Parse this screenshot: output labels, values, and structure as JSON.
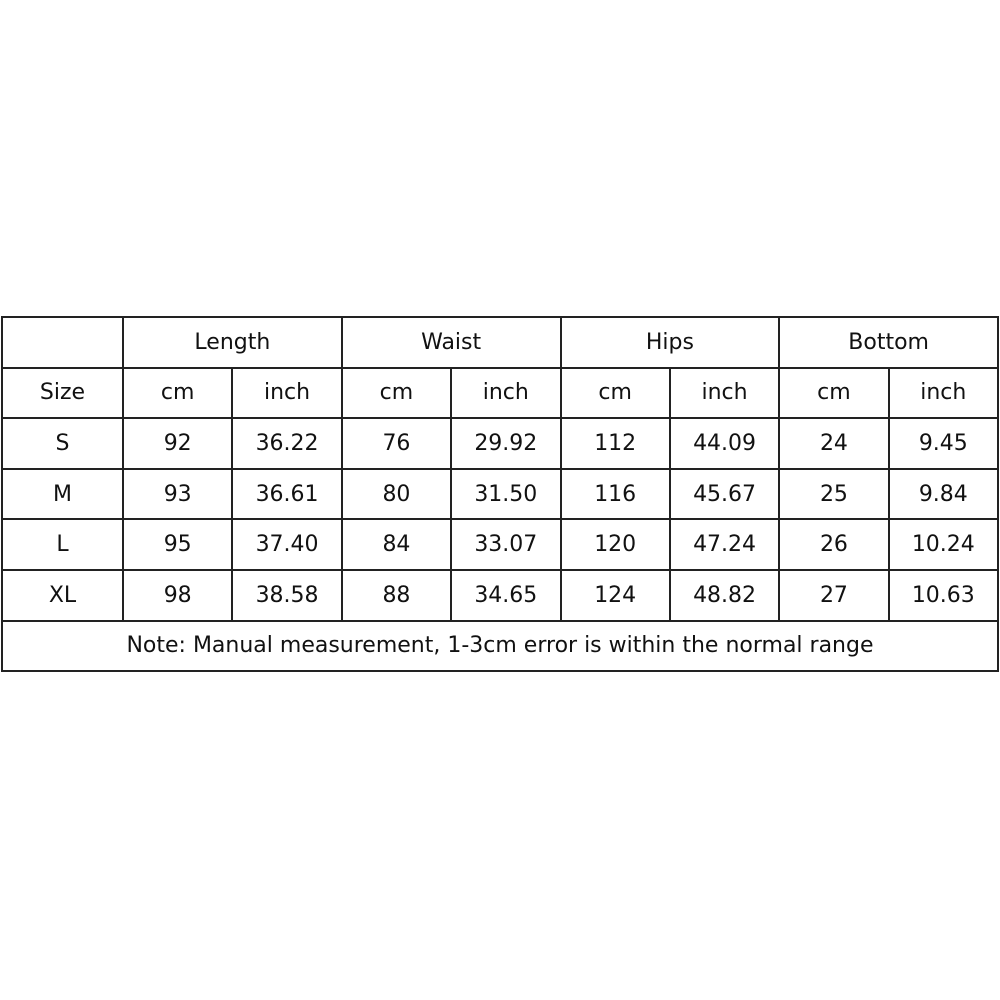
{
  "table": {
    "groups": [
      "Length",
      "Waist",
      "Hips",
      "Bottom"
    ],
    "size_label": "Size",
    "units": [
      "cm",
      "inch",
      "cm",
      "inch",
      "cm",
      "inch",
      "cm",
      "inch"
    ],
    "rows": [
      {
        "size": "S",
        "values": [
          "92",
          "36.22",
          "76",
          "29.92",
          "112",
          "44.09",
          "24",
          "9.45"
        ]
      },
      {
        "size": "M",
        "values": [
          "93",
          "36.61",
          "80",
          "31.50",
          "116",
          "45.67",
          "25",
          "9.84"
        ]
      },
      {
        "size": "L",
        "values": [
          "95",
          "37.40",
          "84",
          "33.07",
          "120",
          "47.24",
          "26",
          "10.24"
        ]
      },
      {
        "size": "XL",
        "values": [
          "98",
          "38.58",
          "88",
          "34.65",
          "124",
          "48.82",
          "27",
          "10.63"
        ]
      }
    ],
    "note": "Note: Manual measurement, 1-3cm error is within the normal range"
  }
}
